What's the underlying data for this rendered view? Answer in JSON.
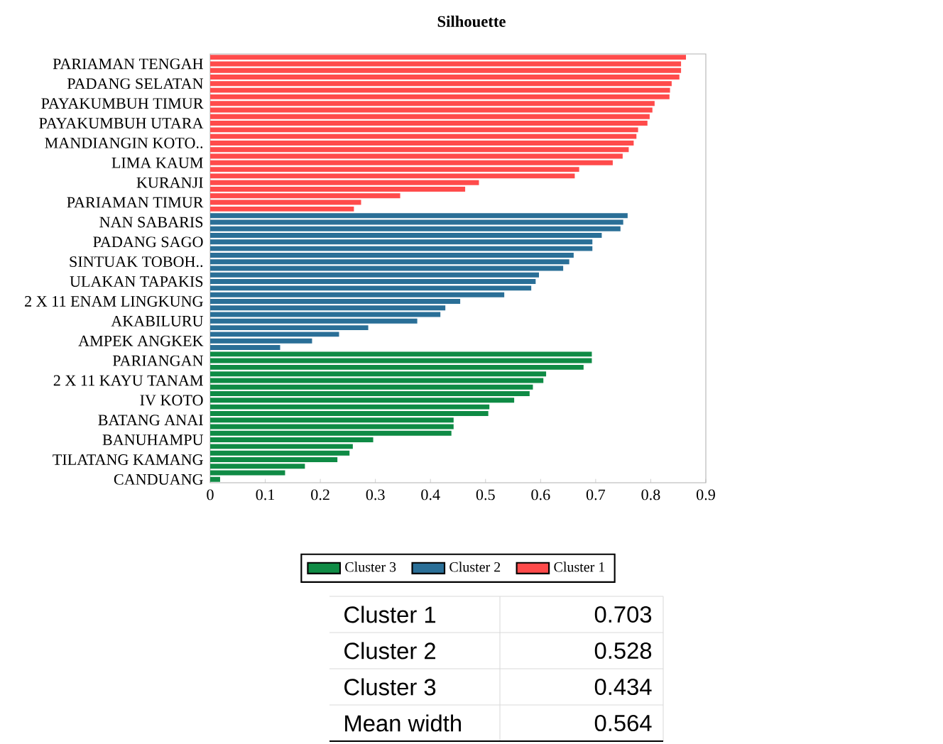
{
  "chart_data": {
    "type": "bar",
    "orientation": "horizontal",
    "title": "Silhouette",
    "categories": [
      null,
      "PARIAMAN TENGAH",
      null,
      null,
      "PADANG SELATAN",
      null,
      null,
      "PAYAKUMBUH TIMUR",
      null,
      null,
      "PAYAKUMBUH UTARA",
      null,
      null,
      "MANDIANGIN KOTO..",
      null,
      null,
      "LIMA KAUM",
      null,
      null,
      "KURANJI",
      null,
      null,
      "PARIAMAN TIMUR",
      null,
      null,
      "NAN SABARIS",
      null,
      null,
      "PADANG SAGO",
      null,
      null,
      "SINTUAK TOBOH..",
      null,
      null,
      "ULAKAN TAPAKIS",
      null,
      null,
      "2 X 11 ENAM LINGKUNG",
      null,
      null,
      "AKABILURU",
      null,
      null,
      "AMPEK ANGKEK",
      null,
      null,
      "PARIANGAN",
      null,
      null,
      "2 X 11 KAYU TANAM",
      null,
      null,
      "IV KOTO",
      null,
      null,
      "BATANG ANAI",
      null,
      null,
      "BANUHAMPU",
      null,
      null,
      "TILATANG KAMANG",
      null,
      null,
      "CANDUANG"
    ],
    "series": [
      {
        "name": "Cluster 3",
        "color": "#0f8b45",
        "values": [
          null,
          null,
          null,
          null,
          null,
          null,
          null,
          null,
          null,
          null,
          null,
          null,
          null,
          null,
          null,
          null,
          null,
          null,
          null,
          null,
          null,
          null,
          null,
          null,
          null,
          null,
          null,
          null,
          null,
          null,
          null,
          null,
          null,
          null,
          null,
          null,
          null,
          null,
          null,
          null,
          null,
          null,
          null,
          null,
          null,
          0.693,
          0.693,
          0.678,
          0.61,
          0.605,
          0.586,
          0.58,
          0.552,
          0.507,
          0.505,
          0.442,
          0.442,
          0.438,
          0.296,
          0.259,
          0.253,
          0.231,
          0.172,
          0.136,
          0.018
        ]
      },
      {
        "name": "Cluster 2",
        "color": "#2a6f97",
        "values": [
          null,
          null,
          null,
          null,
          null,
          null,
          null,
          null,
          null,
          null,
          null,
          null,
          null,
          null,
          null,
          null,
          null,
          null,
          null,
          null,
          null,
          null,
          null,
          null,
          0.758,
          0.75,
          0.745,
          0.711,
          0.694,
          0.694,
          0.66,
          0.652,
          0.641,
          0.597,
          0.591,
          0.583,
          0.534,
          0.454,
          0.427,
          0.418,
          0.376,
          0.287,
          0.234,
          0.185,
          0.127,
          null,
          null,
          null,
          null,
          null,
          null,
          null,
          null,
          null,
          null,
          null,
          null,
          null,
          null,
          null,
          null,
          null,
          null,
          null,
          null
        ]
      },
      {
        "name": "Cluster 1",
        "color": "#ff4b4b",
        "values": [
          0.864,
          0.855,
          0.855,
          0.852,
          0.838,
          0.835,
          0.834,
          0.807,
          0.803,
          0.798,
          0.794,
          0.777,
          0.774,
          0.769,
          0.76,
          0.749,
          0.731,
          0.67,
          0.662,
          0.488,
          0.463,
          0.345,
          0.274,
          0.261,
          null,
          null,
          null,
          null,
          null,
          null,
          null,
          null,
          null,
          null,
          null,
          null,
          null,
          null,
          null,
          null,
          null,
          null,
          null,
          null,
          null,
          null,
          null,
          null,
          null,
          null,
          null,
          null,
          null,
          null,
          null,
          null,
          null,
          null,
          null,
          null,
          null,
          null,
          null,
          null,
          null
        ]
      }
    ],
    "xlim": [
      0,
      0.9
    ],
    "xticks": [
      0,
      0.1,
      0.2,
      0.3,
      0.4,
      0.5,
      0.6,
      0.7,
      0.8,
      0.9
    ],
    "legend": "bottom",
    "annotations": [
      "Cluster 1",
      "0.703",
      "Cluster 2",
      "0.528",
      "Cluster 3",
      "0.434",
      "Mean width",
      "0.564"
    ]
  }
}
